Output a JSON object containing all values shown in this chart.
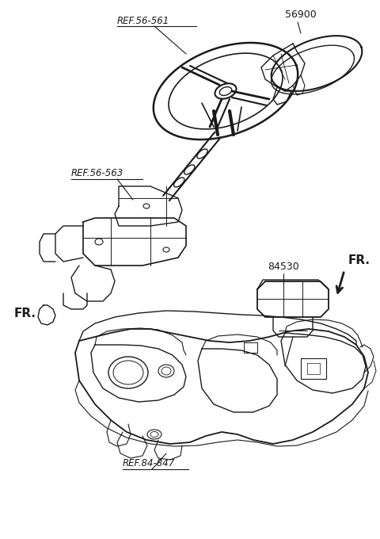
{
  "bg_color": "#ffffff",
  "line_color": "#1a1a1a",
  "fig_width": 4.8,
  "fig_height": 6.8,
  "dpi": 100,
  "labels": {
    "ref_56_561": "REF.56-561",
    "ref_56_563": "REF.56-563",
    "ref_84_847": "REF.84-847",
    "part_56900": "56900",
    "part_84530": "84530",
    "fr_left": "FR.",
    "fr_right": "FR."
  }
}
